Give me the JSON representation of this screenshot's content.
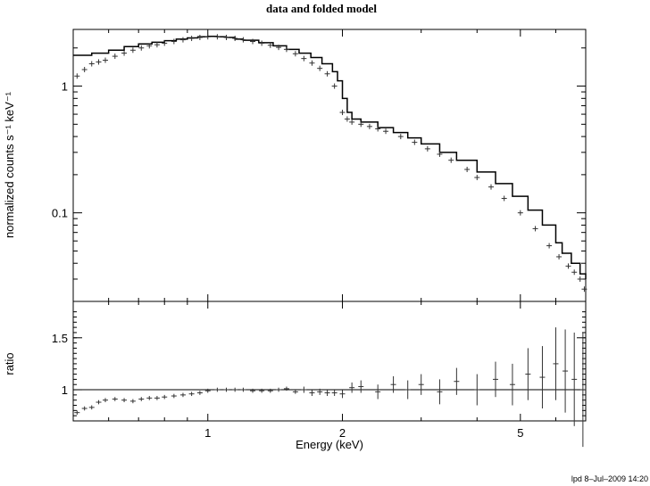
{
  "chart_data": [
    {
      "panel": "top",
      "type": "scatter",
      "title": "data and folded model",
      "ylabel": "normalized counts s⁻¹ keV⁻¹",
      "x_scale": "log",
      "y_scale": "log",
      "xlim": [
        0.5,
        7.0
      ],
      "ylim": [
        0.02,
        2.8
      ],
      "y_tick_labels": [
        {
          "v": 1,
          "t": "1"
        },
        {
          "v": 0.1,
          "t": "0.1"
        }
      ],
      "series": [
        {
          "style": "errorbar-cross",
          "x": [
            0.51,
            0.53,
            0.55,
            0.57,
            0.59,
            0.62,
            0.65,
            0.68,
            0.71,
            0.74,
            0.77,
            0.8,
            0.84,
            0.88,
            0.92,
            0.96,
            1.0,
            1.05,
            1.1,
            1.15,
            1.2,
            1.26,
            1.32,
            1.38,
            1.44,
            1.5,
            1.57,
            1.64,
            1.71,
            1.78,
            1.85,
            1.92,
            2.0,
            2.05,
            2.1,
            2.2,
            2.3,
            2.4,
            2.5,
            2.7,
            2.9,
            3.1,
            3.3,
            3.5,
            3.8,
            4.0,
            4.3,
            4.6,
            5.0,
            5.4,
            5.8,
            6.1,
            6.4,
            6.6,
            6.8,
            6.95
          ],
          "y": [
            1.2,
            1.35,
            1.5,
            1.55,
            1.6,
            1.72,
            1.82,
            1.92,
            2.0,
            2.08,
            2.12,
            2.18,
            2.25,
            2.32,
            2.38,
            2.42,
            2.45,
            2.45,
            2.42,
            2.38,
            2.32,
            2.25,
            2.18,
            2.1,
            2.02,
            1.95,
            1.8,
            1.65,
            1.52,
            1.38,
            1.25,
            1.0,
            0.62,
            0.55,
            0.52,
            0.5,
            0.48,
            0.46,
            0.44,
            0.4,
            0.36,
            0.32,
            0.29,
            0.26,
            0.22,
            0.19,
            0.16,
            0.13,
            0.1,
            0.075,
            0.055,
            0.045,
            0.038,
            0.034,
            0.03,
            0.025
          ]
        },
        {
          "style": "step-line",
          "x": [
            0.5,
            0.55,
            0.6,
            0.65,
            0.7,
            0.75,
            0.8,
            0.85,
            0.9,
            0.95,
            1.0,
            1.05,
            1.1,
            1.15,
            1.2,
            1.3,
            1.4,
            1.5,
            1.6,
            1.7,
            1.8,
            1.9,
            1.95,
            2.0,
            2.05,
            2.1,
            2.2,
            2.4,
            2.6,
            2.8,
            3.0,
            3.3,
            3.6,
            4.0,
            4.4,
            4.8,
            5.2,
            5.6,
            6.0,
            6.2,
            6.5,
            6.8,
            7.0
          ],
          "y": [
            1.75,
            1.82,
            1.92,
            2.05,
            2.15,
            2.22,
            2.28,
            2.35,
            2.4,
            2.45,
            2.47,
            2.45,
            2.42,
            2.35,
            2.3,
            2.2,
            2.08,
            1.95,
            1.82,
            1.68,
            1.5,
            1.3,
            1.1,
            0.8,
            0.62,
            0.55,
            0.52,
            0.47,
            0.43,
            0.39,
            0.35,
            0.3,
            0.26,
            0.21,
            0.17,
            0.135,
            0.105,
            0.08,
            0.058,
            0.048,
            0.04,
            0.033,
            0.03
          ]
        }
      ]
    },
    {
      "panel": "bottom",
      "type": "scatter",
      "xlabel": "Energy (keV)",
      "ylabel": "ratio",
      "x_scale": "log",
      "xlim": [
        0.5,
        7.0
      ],
      "ylim": [
        0.7,
        1.85
      ],
      "y_tick_labels": [
        {
          "v": 1,
          "t": "1"
        },
        {
          "v": 1.5,
          "t": "1.5"
        }
      ],
      "x_tick_labels": [
        {
          "v": 1,
          "t": "1"
        },
        {
          "v": 2,
          "t": "2"
        },
        {
          "v": 5,
          "t": "5"
        }
      ],
      "reference_line": 1,
      "series": [
        {
          "style": "errorbar-cross",
          "x": [
            0.51,
            0.53,
            0.55,
            0.57,
            0.59,
            0.62,
            0.65,
            0.68,
            0.71,
            0.74,
            0.77,
            0.8,
            0.84,
            0.88,
            0.92,
            0.96,
            1.0,
            1.05,
            1.1,
            1.15,
            1.2,
            1.26,
            1.32,
            1.38,
            1.44,
            1.5,
            1.57,
            1.64,
            1.71,
            1.78,
            1.85,
            1.92,
            2.0,
            2.1,
            2.2,
            2.4,
            2.6,
            2.8,
            3.0,
            3.3,
            3.6,
            4.0,
            4.4,
            4.8,
            5.2,
            5.6,
            6.0,
            6.3,
            6.6,
            6.9
          ],
          "y": [
            0.78,
            0.82,
            0.83,
            0.88,
            0.9,
            0.91,
            0.9,
            0.89,
            0.91,
            0.92,
            0.92,
            0.93,
            0.94,
            0.95,
            0.96,
            0.97,
            0.99,
            1.0,
            1.0,
            1.0,
            1.0,
            0.99,
            0.99,
            0.99,
            1.0,
            1.01,
            0.98,
            1.0,
            0.97,
            0.98,
            0.97,
            0.97,
            0.96,
            1.02,
            1.03,
            0.98,
            1.05,
            1.0,
            1.05,
            0.98,
            1.08,
            1.0,
            1.1,
            1.05,
            1.15,
            1.12,
            1.25,
            1.18,
            1.1,
            1.0
          ],
          "err": [
            0.02,
            0.02,
            0.02,
            0.02,
            0.02,
            0.02,
            0.02,
            0.02,
            0.02,
            0.02,
            0.02,
            0.02,
            0.02,
            0.02,
            0.02,
            0.02,
            0.02,
            0.02,
            0.02,
            0.02,
            0.02,
            0.02,
            0.02,
            0.02,
            0.02,
            0.02,
            0.02,
            0.03,
            0.03,
            0.03,
            0.03,
            0.03,
            0.04,
            0.05,
            0.06,
            0.07,
            0.08,
            0.09,
            0.1,
            0.12,
            0.13,
            0.15,
            0.17,
            0.2,
            0.25,
            0.3,
            0.35,
            0.4,
            0.45,
            0.55
          ]
        }
      ]
    }
  ],
  "footer": {
    "timestamp": "lpd  8–Jul–2009 14:20"
  }
}
